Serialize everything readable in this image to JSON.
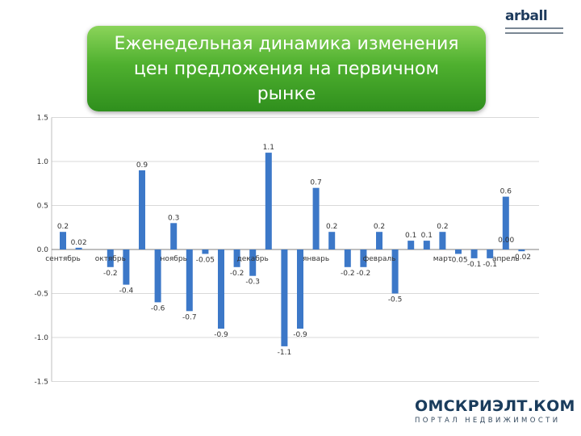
{
  "chart_data": {
    "type": "bar",
    "title": "Еженедельная динамика изменения\nцен предложения на первичном\nрынке",
    "ylim": [
      -1.5,
      1.5
    ],
    "y_ticks": [
      "1.5",
      "1.0",
      "0.5",
      "0.0",
      "-0.5",
      "-1.0",
      "-1.5"
    ],
    "y_tick_values": [
      1.5,
      1.0,
      0.5,
      0.0,
      -0.5,
      -1.0,
      -1.5
    ],
    "grid": true,
    "bar_color": "#3c78c8",
    "values": [
      0.2,
      0.02,
      0,
      -0.2,
      -0.4,
      0.9,
      -0.6,
      0.3,
      -0.7,
      -0.05,
      -0.9,
      -0.2,
      -0.3,
      1.1,
      -1.1,
      -0.9,
      0.7,
      0.2,
      -0.2,
      -0.2,
      0.2,
      -0.5,
      0.1,
      0.1,
      0.2,
      -0.05,
      -0.1,
      -0.1,
      0.6,
      -0.02
    ],
    "labels": [
      "0.2",
      "0.02",
      "",
      "-0.2",
      "-0.4",
      "0.9",
      "-0.6",
      "0.3",
      "-0.7",
      "-0.05",
      "-0.9",
      "-0.2",
      "-0.3",
      "1.1",
      "-1.1",
      "-0.9",
      "0.7",
      "0.2",
      "-0.2",
      "-0.2",
      "0.2",
      "-0.5",
      "0.1",
      "0.1",
      "0.2",
      "-0.05",
      "-0.1",
      "-0.1",
      "0.6",
      "-0.02"
    ],
    "month_labels": [
      {
        "text": "сентябрь",
        "index": 0
      },
      {
        "text": "октябрь",
        "index": 3
      },
      {
        "text": "ноябрь",
        "index": 7
      },
      {
        "text": "декабрь",
        "index": 12
      },
      {
        "text": "январь",
        "index": 16
      },
      {
        "text": "февраль",
        "index": 20
      },
      {
        "text": "март",
        "index": 24
      },
      {
        "text": "апрель",
        "index": 28
      }
    ],
    "extra_labels": [
      "0.00"
    ]
  },
  "logo": {
    "text": "arball"
  },
  "brand": {
    "name": "ОМСКРИЭЛТ.КОМ",
    "subtitle": "ПОРТАЛ НЕДВИЖИМОСТИ"
  }
}
